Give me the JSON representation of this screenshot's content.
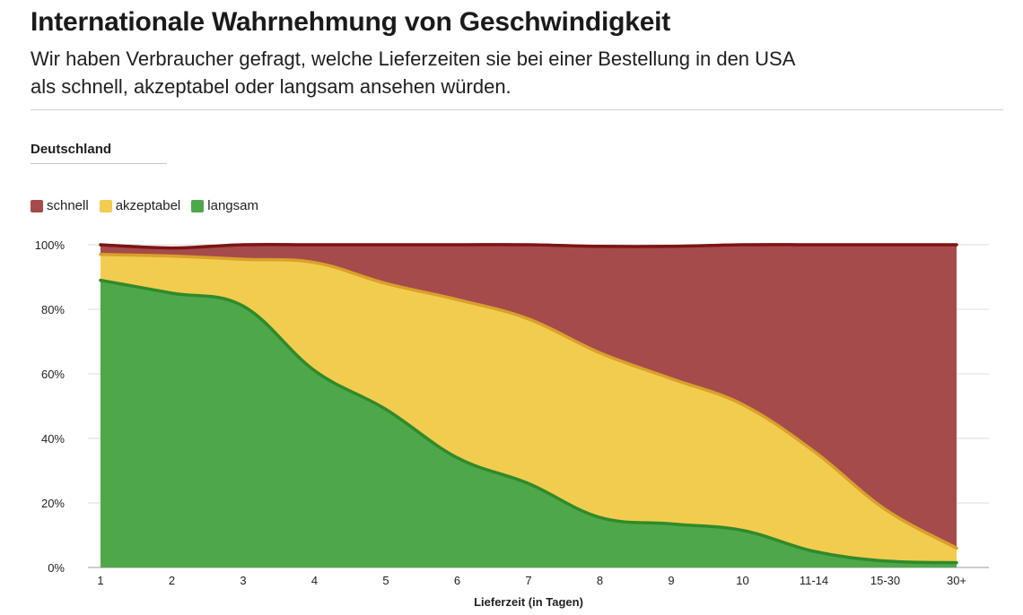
{
  "header": {
    "title": "Internationale Wahrnehmung von Geschwindigkeit",
    "subtitle_line1": "Wir haben Verbraucher gefragt, welche Lieferzeiten sie bei einer Bestellung in den USA",
    "subtitle_line2": "als schnell, akzeptabel oder langsam ansehen würden."
  },
  "panel": {
    "country": "Deutschland"
  },
  "chart_data": {
    "type": "area",
    "stacked": true,
    "title": "",
    "xlabel": "Lieferzeit (in Tagen)",
    "ylabel": "",
    "categories": [
      "1",
      "2",
      "3",
      "4",
      "5",
      "6",
      "7",
      "8",
      "9",
      "10",
      "11-14",
      "15-30",
      "30+"
    ],
    "ylim": [
      0,
      100
    ],
    "yticks": [
      "0%",
      "20%",
      "40%",
      "60%",
      "80%",
      "100%"
    ],
    "grid": true,
    "legend_position": "top-left",
    "series": [
      {
        "name": "langsam",
        "color": "#4ea84a",
        "line": "#2f8a2b",
        "values": [
          89,
          85,
          81,
          61,
          49,
          34,
          26,
          15.5,
          13.5,
          11.5,
          5,
          2,
          1.5
        ]
      },
      {
        "name": "akzeptabel",
        "color": "#f2cc4f",
        "line": "#d9a12a",
        "values": [
          8,
          11.5,
          14.5,
          33.5,
          39,
          49,
          51,
          51,
          45,
          39,
          31,
          16,
          4.5
        ]
      },
      {
        "name": "schnell",
        "color": "#a64b4b",
        "line": "#7d1414",
        "values": [
          3,
          2.5,
          4.5,
          5.5,
          12,
          17,
          23,
          33,
          41,
          49.5,
          64,
          82,
          94
        ]
      }
    ],
    "legend": [
      "schnell",
      "akzeptabel",
      "langsam"
    ]
  }
}
